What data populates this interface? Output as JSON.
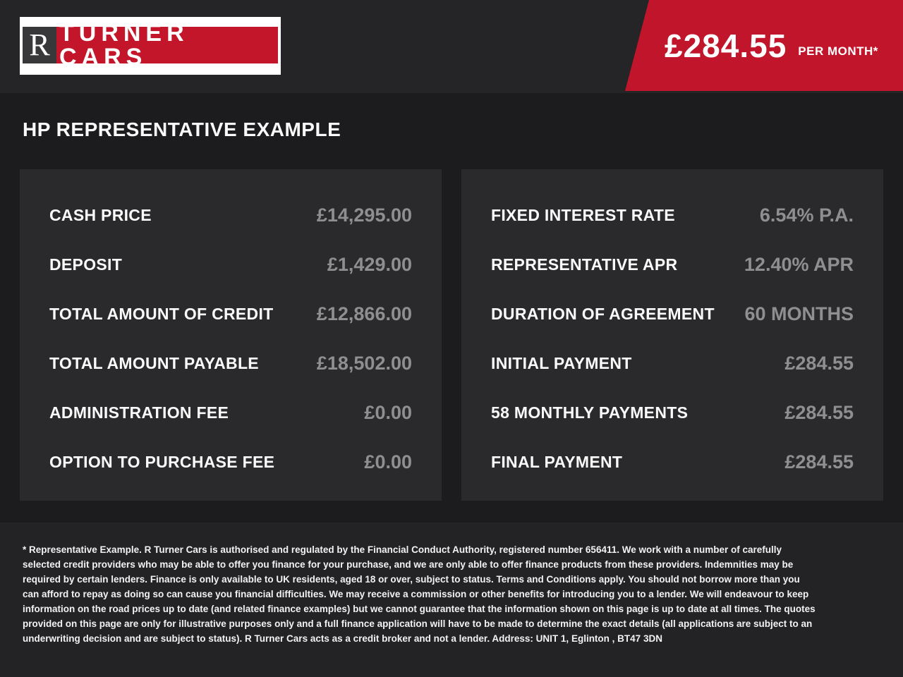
{
  "brand": {
    "initial": "R",
    "name": "TURNER CARS"
  },
  "banner": {
    "amount": "£284.55",
    "per_label": "PER MONTH*"
  },
  "heading": "HP REPRESENTATIVE EXAMPLE",
  "left_panel": {
    "rows": [
      {
        "label": "CASH PRICE",
        "value": "£14,295.00"
      },
      {
        "label": "DEPOSIT",
        "value": "£1,429.00"
      },
      {
        "label": "TOTAL AMOUNT OF CREDIT",
        "value": "£12,866.00"
      },
      {
        "label": "TOTAL AMOUNT PAYABLE",
        "value": "£18,502.00"
      },
      {
        "label": "ADMINISTRATION FEE",
        "value": "£0.00"
      },
      {
        "label": "OPTION TO PURCHASE FEE",
        "value": "£0.00"
      }
    ]
  },
  "right_panel": {
    "rows": [
      {
        "label": "FIXED INTEREST RATE",
        "value": "6.54% P.A."
      },
      {
        "label": "REPRESENTATIVE APR",
        "value": "12.40% APR"
      },
      {
        "label": "DURATION OF AGREEMENT",
        "value": "60 MONTHS"
      },
      {
        "label": "INITIAL PAYMENT",
        "value": "£284.55"
      },
      {
        "label": "58 MONTHLY PAYMENTS",
        "value": "£284.55"
      },
      {
        "label": "FINAL PAYMENT",
        "value": "£284.55"
      }
    ]
  },
  "footer": {
    "disclaimer": "* Representative Example. R Turner Cars is authorised and regulated by the Financial Conduct Authority, registered number 656411. We work with a number of carefully selected credit providers who may be able to offer you finance for your purchase, and we are only able to offer finance products from these providers. Indemnities may be required by certain lenders. Finance is only available to UK residents, aged 18 or over, subject to status. Terms and Conditions apply. You should not borrow more than you can afford to repay as doing so can cause you financial difficulties. We may receive a commission or other benefits for introducing you to a lender. We will endeavour to keep information on the road prices up to date (and related finance examples) but we cannot guarantee that the information shown on this page is up to date at all times. The quotes provided on this page are only for illustrative purposes only and a full finance application will have to be made to determine the exact details (all applications are subject to an underwriting decision and are subject to status). R Turner Cars acts as a credit broker and not a lender. Address: UNIT 1, Eglinton , BT47 3DN"
  },
  "colors": {
    "accent_red": "#c0152b",
    "logo_red": "#c4162a",
    "header_bg": "#252528",
    "body_bg": "#1c1c1f",
    "panel_bg": "#2a2a2d",
    "footer_bg": "#232326",
    "value_gray": "#8f8f92",
    "text_white": "#fafafa"
  }
}
